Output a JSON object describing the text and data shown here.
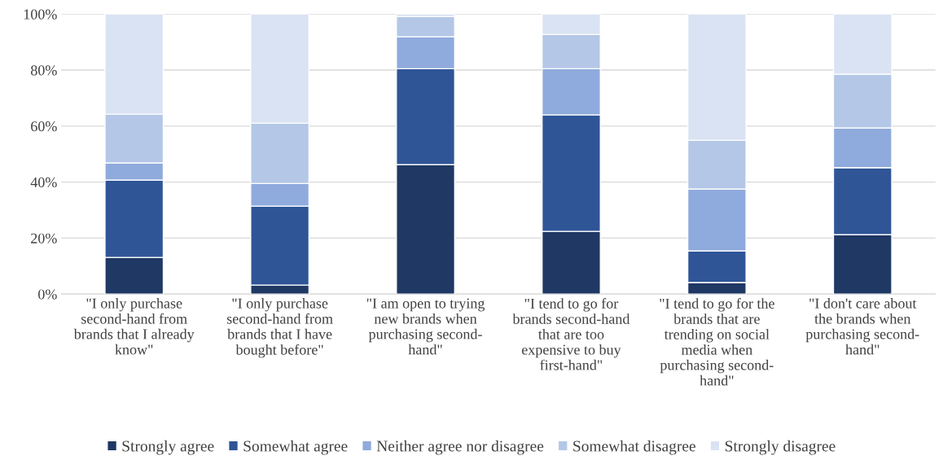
{
  "chart_data": {
    "type": "bar",
    "stacked": true,
    "categories": [
      "\"I only purchase\nsecond-hand from\nbrands that I already\nknow\"",
      "\"I only purchase\nsecond-hand from\nbrands that I have\nbought before\"",
      "\"I am open to trying\nnew brands when\npurchasing second-\nhand\"",
      "\"I tend to go for\nbrands second-hand\nthat are too\nexpensive to buy\nfirst-hand\"",
      "\"I tend to go for the\nbrands that are\ntrending on social\nmedia when\npurchasing second-\nhand\"",
      "\"I don't care about\nthe brands when\npurchasing second-\nhand\""
    ],
    "series": [
      {
        "name": "Strongly agree",
        "color": "#1f3864",
        "values": [
          13.1,
          3.2,
          46.2,
          22.4,
          4.1,
          21.2
        ]
      },
      {
        "name": "Somewhat agree",
        "color": "#2f5597",
        "values": [
          27.6,
          28.2,
          34.3,
          41.6,
          11.3,
          23.9
        ]
      },
      {
        "name": "Neither agree nor disagree",
        "color": "#8faadc",
        "values": [
          6.1,
          8.1,
          11.4,
          16.5,
          22.1,
          14.2
        ]
      },
      {
        "name": "Somewhat disagree",
        "color": "#b4c7e7",
        "values": [
          17.4,
          21.5,
          7.2,
          12.2,
          17.4,
          19.2
        ]
      },
      {
        "name": "Strongly disagree",
        "color": "#dae3f3",
        "values": [
          35.8,
          39.0,
          0.9,
          7.3,
          45.1,
          21.5
        ]
      }
    ],
    "ylim": [
      0,
      100
    ],
    "yticks": [
      {
        "value": 0,
        "label": "0%"
      },
      {
        "value": 20,
        "label": "20%"
      },
      {
        "value": 40,
        "label": "40%"
      },
      {
        "value": 60,
        "label": "60%"
      },
      {
        "value": 80,
        "label": "80%"
      },
      {
        "value": 100,
        "label": "100%"
      }
    ],
    "grid": "y",
    "legend": "bottom"
  }
}
